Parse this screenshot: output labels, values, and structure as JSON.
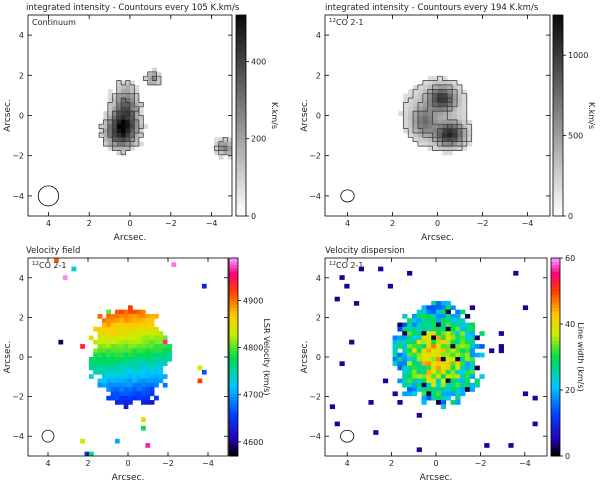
{
  "chart_data": [
    {
      "type": "heatmap",
      "title": "integrated intensity - Countours every 105 K.km/s",
      "panel_label": "Continuum",
      "panel_label_iso": "",
      "xlabel": "Arcsec.",
      "ylabel": "Arcsec.",
      "xlim": [
        5,
        -5
      ],
      "ylim": [
        -5,
        5
      ],
      "xticks": [
        4,
        2,
        0,
        -2,
        -4
      ],
      "xtick_labels": [
        "4",
        "2",
        "0",
        "−2",
        "−4"
      ],
      "yticks": [
        -4,
        -2,
        0,
        2,
        4
      ],
      "ytick_labels": [
        "−4",
        "−2",
        "0",
        "2",
        "4"
      ],
      "colorbar": {
        "label": "K.km/s",
        "min": 0,
        "max": 520,
        "ticks": [
          0,
          200,
          400
        ],
        "tick_labels": [
          "0",
          "200",
          "400"
        ],
        "colormap": "gray_reversed"
      },
      "contour_step": 105,
      "beam": {
        "x": 4,
        "y": -4,
        "r": 0.5
      },
      "sources": [
        {
          "x": 0.2,
          "y": 0.4,
          "sx": 0.45,
          "sy": 0.85,
          "amp": 320
        },
        {
          "x": 0.45,
          "y": -0.8,
          "sx": 0.55,
          "sy": 0.6,
          "amp": 430
        },
        {
          "x": -1.15,
          "y": 1.85,
          "sx": 0.28,
          "sy": 0.28,
          "amp": 230
        },
        {
          "x": -4.7,
          "y": -1.6,
          "sx": 0.35,
          "sy": 0.3,
          "amp": 260
        }
      ],
      "noise_level": 60
    },
    {
      "type": "heatmap",
      "title": "integrated intensity - Countours every 194 K.km/s",
      "panel_label": "",
      "panel_label_iso": "12",
      "panel_label_line": "CO 2-1",
      "xlabel": "Arcsec.",
      "ylabel": "Arcsec.",
      "xlim": [
        5,
        -5
      ],
      "ylim": [
        -5,
        5
      ],
      "xticks": [
        4,
        2,
        0,
        -2,
        -4
      ],
      "xtick_labels": [
        "4",
        "2",
        "0",
        "−2",
        "−4"
      ],
      "yticks": [
        -4,
        -2,
        0,
        2,
        4
      ],
      "ytick_labels": [
        "−4",
        "−2",
        "0",
        "2",
        "4"
      ],
      "colorbar": {
        "label": "K.km/s",
        "min": 0,
        "max": 1250,
        "ticks": [
          0,
          500,
          1000
        ],
        "tick_labels": [
          "0",
          "500",
          "1000"
        ],
        "colormap": "gray_reversed"
      },
      "contour_step": 194,
      "beam": {
        "x": 4,
        "y": -4,
        "r": 0.3
      },
      "sources": [
        {
          "x": 0.2,
          "y": 0.2,
          "sx": 1.6,
          "sy": 1.6,
          "amp": 260
        },
        {
          "x": -0.2,
          "y": 0.85,
          "sx": 0.42,
          "sy": 0.42,
          "amp": 820
        },
        {
          "x": -0.55,
          "y": -0.95,
          "sx": 0.45,
          "sy": 0.4,
          "amp": 960
        },
        {
          "x": 0.6,
          "y": -0.3,
          "sx": 0.35,
          "sy": 0.5,
          "amp": 520
        }
      ],
      "noise_level": 20
    },
    {
      "type": "heatmap",
      "title": "Velocity field",
      "panel_label": "",
      "panel_label_iso": "12",
      "panel_label_line": "CO 2-1",
      "xlabel": "Arcsec.",
      "ylabel": "Arcsec.",
      "xlim": [
        5,
        -5
      ],
      "ylim": [
        -5,
        5
      ],
      "xticks": [
        4,
        2,
        0,
        -2,
        -4
      ],
      "xtick_labels": [
        "4",
        "2",
        "0",
        "−2",
        "−4"
      ],
      "yticks": [
        -4,
        -2,
        0,
        2,
        4
      ],
      "ytick_labels": [
        "−4",
        "−2",
        "0",
        "2",
        "4"
      ],
      "colorbar": {
        "label": "LSR Velocity (km/s)",
        "min": 4570,
        "max": 4990,
        "ticks": [
          4600,
          4700,
          4800,
          4900
        ],
        "tick_labels": [
          "4600",
          "4700",
          "4800",
          "4900"
        ],
        "colormap": "rainbow"
      },
      "beam": {
        "x": 4,
        "y": -4,
        "r": 0.3
      },
      "velocity_gradient": {
        "center_value": 4775,
        "per_arcsec_y": 60,
        "per_arcsec_x": 8
      },
      "field_shape": "ring"
    },
    {
      "type": "heatmap",
      "title": "Velocity dispersion",
      "panel_label": "",
      "panel_label_iso": "12",
      "panel_label_line": "CO 2-1",
      "xlabel": "Arcsec.",
      "ylabel": "Arcsec.",
      "xlim": [
        5,
        -5
      ],
      "ylim": [
        -5,
        5
      ],
      "xticks": [
        4,
        2,
        0,
        -2,
        -4
      ],
      "xtick_labels": [
        "4",
        "2",
        "0",
        "−2",
        "−4"
      ],
      "yticks": [
        -4,
        -2,
        0,
        2,
        4
      ],
      "ytick_labels": [
        "−4",
        "−2",
        "0",
        "2",
        "4"
      ],
      "colorbar": {
        "label": "Line width (km/s)",
        "min": 0,
        "max": 60,
        "ticks": [
          0,
          20,
          40,
          60
        ],
        "tick_labels": [
          "0",
          "20",
          "40",
          "60"
        ],
        "colormap": "rainbow_dark"
      },
      "beam": {
        "x": 4,
        "y": -4,
        "r": 0.3
      },
      "dispersion": {
        "base": 18,
        "peak": 42
      },
      "field_shape": "ring"
    }
  ]
}
